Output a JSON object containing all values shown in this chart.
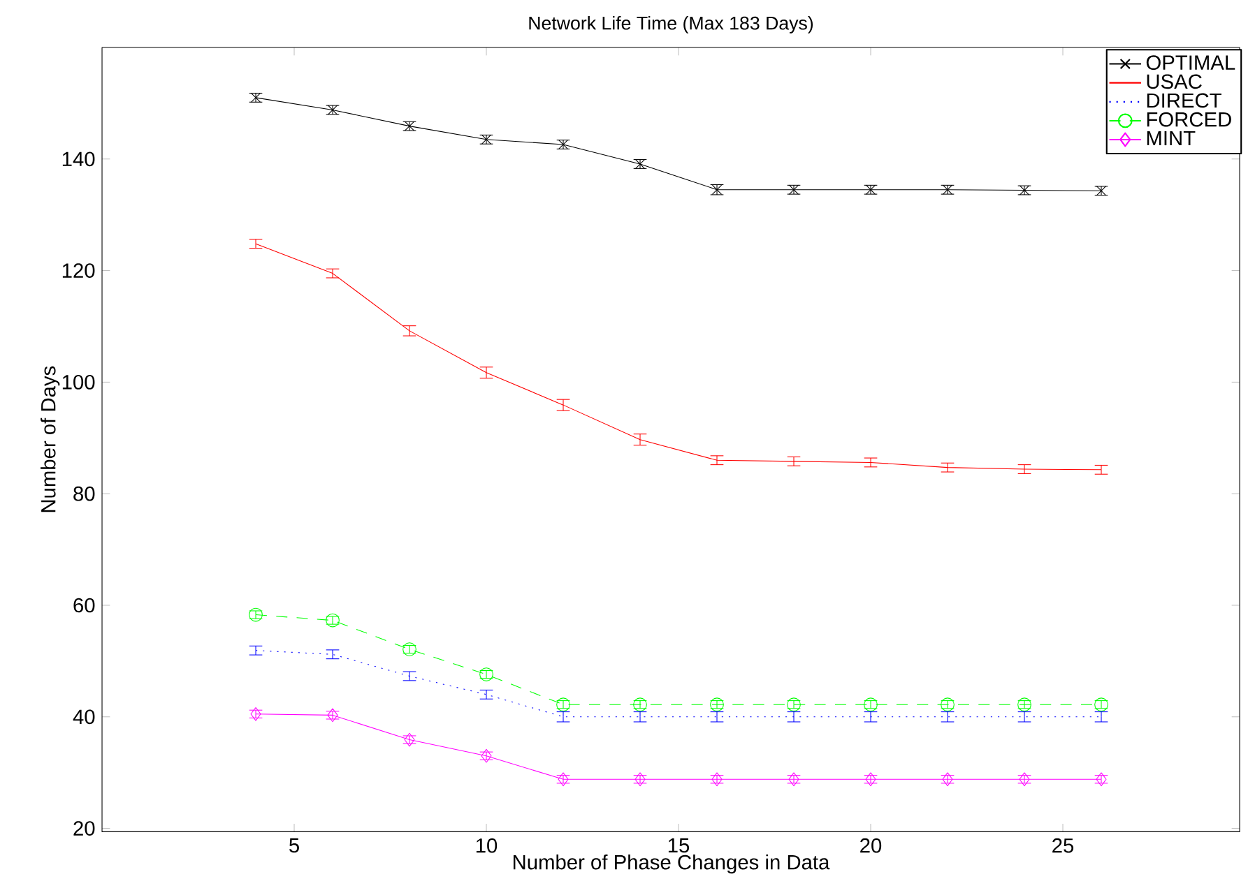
{
  "chart_data": {
    "type": "line",
    "title": "Network Life Time (Max 183 Days)",
    "xlabel": "Number of Phase Changes in Data",
    "ylabel": "Number of Days",
    "x": [
      4,
      6,
      8,
      10,
      12,
      14,
      16,
      18,
      20,
      22,
      24,
      26
    ],
    "series": [
      {
        "name": "OPTIMAL",
        "color": "#000000",
        "marker": "cross",
        "line_style": "solid",
        "values": [
          151,
          148.8,
          145.9,
          143.5,
          142.6,
          139.1,
          134.5,
          134.5,
          134.5,
          134.5,
          134.4,
          134.3
        ],
        "errors": [
          0.8,
          0.8,
          0.8,
          0.8,
          0.8,
          0.8,
          0.9,
          0.8,
          0.8,
          0.8,
          0.8,
          0.8
        ]
      },
      {
        "name": "USAC",
        "color": "#ff0000",
        "marker": "none",
        "line_style": "solid",
        "values": [
          124.8,
          119.5,
          109.2,
          101.7,
          95.9,
          89.7,
          86.0,
          85.8,
          85.6,
          84.7,
          84.4,
          84.3
        ],
        "errors": [
          0.8,
          0.8,
          0.9,
          1.0,
          1.0,
          1.0,
          0.8,
          0.8,
          0.8,
          0.8,
          0.8,
          0.8
        ]
      },
      {
        "name": "DIRECT",
        "color": "#0000ff",
        "marker": "none",
        "line_style": "dotted",
        "values": [
          51.9,
          51.2,
          47.3,
          44.0,
          40.0,
          40.0,
          40.0,
          40.0,
          40.0,
          40.0,
          40.0,
          40.0
        ],
        "errors": [
          0.8,
          0.8,
          0.8,
          0.8,
          0.9,
          0.9,
          0.9,
          0.9,
          0.9,
          0.9,
          0.9,
          0.9
        ]
      },
      {
        "name": "FORCED",
        "color": "#00ff00",
        "marker": "circle",
        "line_style": "dashed",
        "values": [
          58.3,
          57.3,
          52.1,
          47.6,
          42.2,
          42.2,
          42.2,
          42.2,
          42.2,
          42.2,
          42.2,
          42.2
        ],
        "errors": [
          0.7,
          0.7,
          0.7,
          0.7,
          0.7,
          0.7,
          0.7,
          0.7,
          0.7,
          0.7,
          0.7,
          0.7
        ]
      },
      {
        "name": "MINT",
        "color": "#ff00ff",
        "marker": "diamond",
        "line_style": "solid",
        "values": [
          40.5,
          40.3,
          35.9,
          33.0,
          28.8,
          28.8,
          28.8,
          28.8,
          28.8,
          28.8,
          28.8,
          28.8
        ],
        "errors": [
          0.7,
          0.7,
          0.7,
          0.7,
          0.7,
          0.7,
          0.7,
          0.7,
          0.7,
          0.7,
          0.7,
          0.7
        ]
      }
    ],
    "xlim": [
      0,
      29.6
    ],
    "ylim": [
      19.4,
      160
    ],
    "xticks": [
      5,
      10,
      15,
      20,
      25
    ],
    "yticks": [
      20,
      40,
      60,
      80,
      100,
      120,
      140
    ],
    "grid": false,
    "legend": "top right"
  }
}
